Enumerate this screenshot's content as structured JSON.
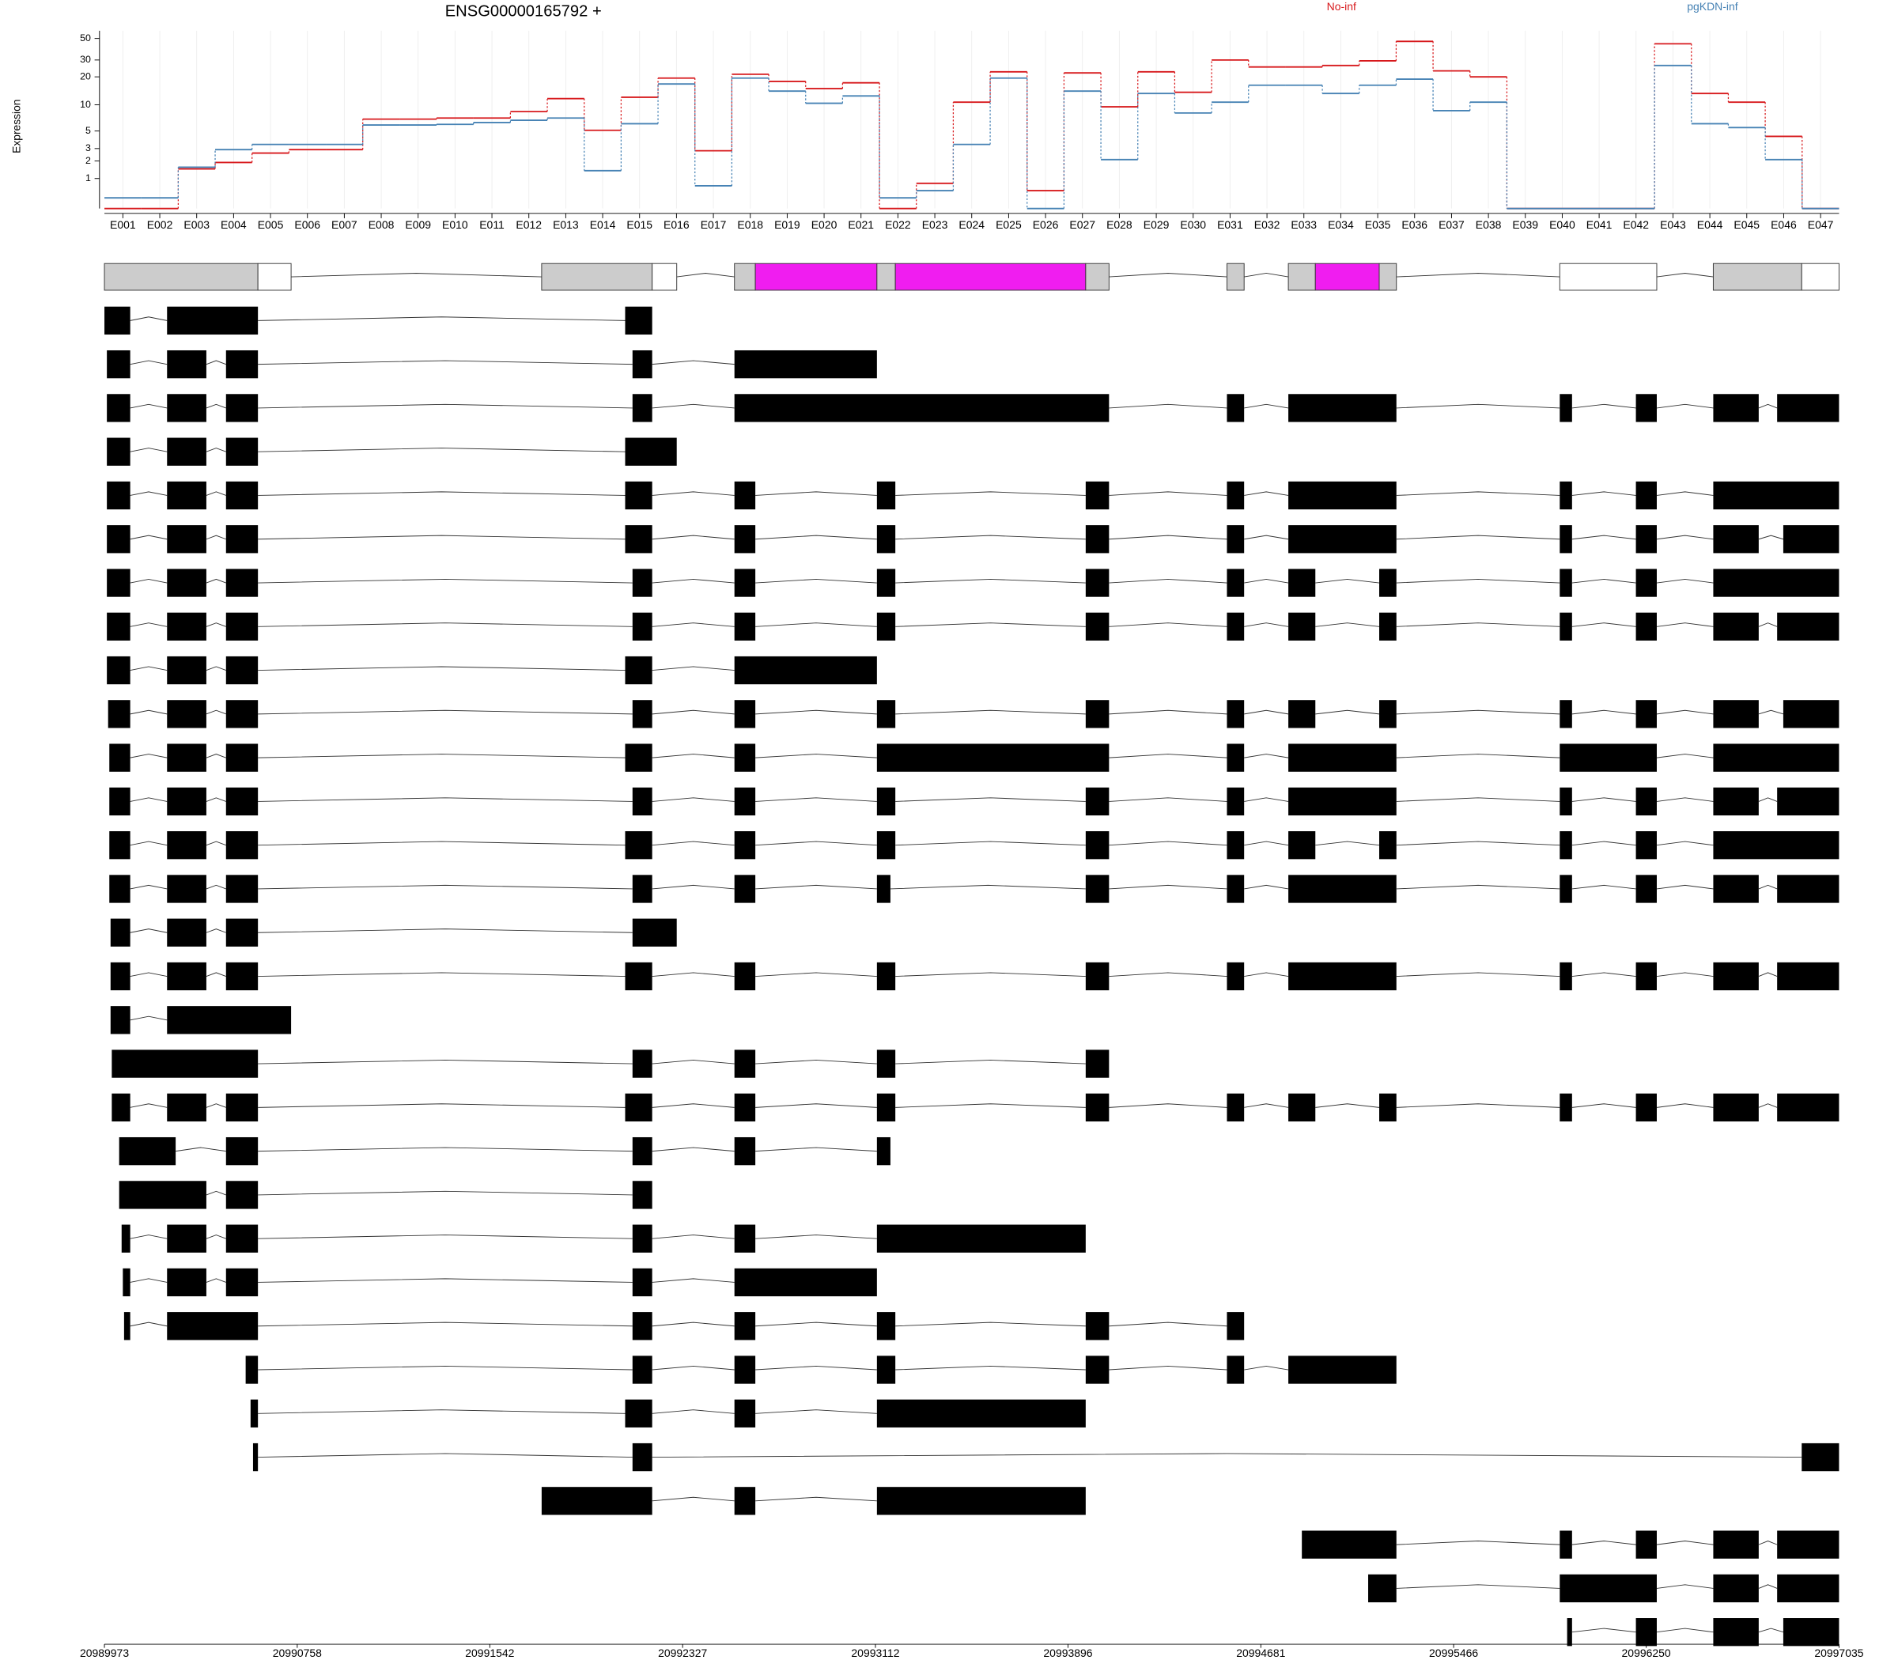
{
  "chart_data": {
    "type": "line",
    "title": "ENSG00000165792 +",
    "y_label": "Expression",
    "y_scale": "log1p",
    "grid": true,
    "legend_position": "top",
    "categories": [
      "E001",
      "E002",
      "E003",
      "E004",
      "E005",
      "E006",
      "E007",
      "E008",
      "E009",
      "E010",
      "E011",
      "E012",
      "E013",
      "E014",
      "E015",
      "E016",
      "E017",
      "E018",
      "E019",
      "E020",
      "E021",
      "E022",
      "E023",
      "E024",
      "E025",
      "E026",
      "E027",
      "E028",
      "E029",
      "E030",
      "E031",
      "E032",
      "E033",
      "E034",
      "E035",
      "E036",
      "E037",
      "E038",
      "E039",
      "E040",
      "E041",
      "E042",
      "E043",
      "E044",
      "E045",
      "E046",
      "E047"
    ],
    "series": [
      {
        "name": "No-inf",
        "color": "#d7191c",
        "values": [
          0,
          0,
          1.5,
          1.9,
          2.6,
          2.9,
          2.9,
          6.9,
          6.9,
          7.1,
          7.1,
          8.4,
          11.7,
          5.1,
          12.1,
          19.4,
          2.8,
          21.3,
          17.9,
          15,
          17.3,
          0,
          0.79,
          10.7,
          22.6,
          0.51,
          22,
          9.5,
          22.6,
          13.7,
          30,
          25.4,
          25.4,
          26.3,
          29.4,
          46.7,
          23.1,
          20,
          0,
          0,
          0,
          0,
          44.1,
          13.3,
          10.7,
          4.3,
          0
        ]
      },
      {
        "name": "pgKDN-inf",
        "color": "#4682b4",
        "values": [
          0.28,
          0.28,
          1.6,
          2.9,
          3.4,
          3.4,
          3.4,
          5.9,
          5.9,
          6.0,
          6.3,
          6.7,
          7.1,
          1.4,
          6.1,
          16.8,
          0.69,
          19.4,
          14.1,
          10.4,
          12.5,
          0.28,
          0.51,
          3.4,
          19.4,
          0,
          14.1,
          2.1,
          13.3,
          8.1,
          10.7,
          16.3,
          16.3,
          13.3,
          16.3,
          18.9,
          8.6,
          10.7,
          0,
          0,
          0,
          0,
          26.3,
          6.1,
          5.5,
          2.1,
          0
        ]
      }
    ],
    "ylim": [
      0,
      60
    ],
    "yticks": [
      1,
      2,
      3,
      5,
      10,
      20,
      30,
      50
    ],
    "xlim": [
      20989973,
      20997035
    ],
    "xticks": [
      20989973,
      20990758,
      20991542,
      20992327,
      20993112,
      20993896,
      20994681,
      20995466,
      20996250,
      20997035
    ],
    "gene_model": [
      {
        "start": 20989973,
        "end": 20990598,
        "color": "#cccccc"
      },
      {
        "start": 20990598,
        "end": 20990733,
        "color": "#ffffff"
      },
      {
        "start": 20991753,
        "end": 20992203,
        "color": "#cccccc"
      },
      {
        "start": 20992203,
        "end": 20992303,
        "color": "#ffffff"
      },
      {
        "start": 20992538,
        "end": 20992623,
        "color": "#cccccc"
      },
      {
        "start": 20992623,
        "end": 20993118,
        "color": "#f01df0"
      },
      {
        "start": 20993118,
        "end": 20993193,
        "color": "#cccccc"
      },
      {
        "start": 20993193,
        "end": 20993968,
        "color": "#f01df0"
      },
      {
        "start": 20993968,
        "end": 20994063,
        "color": "#cccccc"
      },
      {
        "start": 20994543,
        "end": 20994613,
        "color": "#cccccc"
      },
      {
        "start": 20994793,
        "end": 20994903,
        "color": "#cccccc"
      },
      {
        "start": 20994903,
        "end": 20995163,
        "color": "#f01df0"
      },
      {
        "start": 20995163,
        "end": 20995233,
        "color": "#cccccc"
      },
      {
        "start": 20995898,
        "end": 20996293,
        "color": "#ffffff"
      },
      {
        "start": 20996523,
        "end": 20996883,
        "color": "#cccccc"
      },
      {
        "start": 20996883,
        "end": 20997035,
        "color": "#ffffff"
      }
    ],
    "transcripts": [
      [
        [
          20989973,
          20990078
        ],
        [
          20990228,
          20990598
        ],
        [
          20992093,
          20992203
        ]
      ],
      [
        [
          20989983,
          20990078
        ],
        [
          20990228,
          20990388
        ],
        [
          20990468,
          20990598
        ],
        [
          20992123,
          20992203
        ],
        [
          20992538,
          20993118
        ]
      ],
      [
        [
          20989983,
          20990078
        ],
        [
          20990228,
          20990388
        ],
        [
          20990468,
          20990598
        ],
        [
          20992123,
          20992203
        ],
        [
          20992538,
          20994063
        ],
        [
          20994543,
          20994613
        ],
        [
          20994793,
          20995233
        ],
        [
          20995898,
          20995948
        ],
        [
          20996208,
          20996293
        ],
        [
          20996523,
          20996708
        ],
        [
          20996783,
          20997035
        ]
      ],
      [
        [
          20989983,
          20990078
        ],
        [
          20990228,
          20990388
        ],
        [
          20990468,
          20990598
        ],
        [
          20992093,
          20992303
        ]
      ],
      [
        [
          20989983,
          20990078
        ],
        [
          20990228,
          20990388
        ],
        [
          20990468,
          20990598
        ],
        [
          20992093,
          20992203
        ],
        [
          20992538,
          20992623
        ],
        [
          20993118,
          20993193
        ],
        [
          20993968,
          20994063
        ],
        [
          20994543,
          20994613
        ],
        [
          20994793,
          20995233
        ],
        [
          20995898,
          20995948
        ],
        [
          20996208,
          20996293
        ],
        [
          20996523,
          20997035
        ]
      ],
      [
        [
          20989983,
          20990078
        ],
        [
          20990228,
          20990388
        ],
        [
          20990468,
          20990598
        ],
        [
          20992093,
          20992203
        ],
        [
          20992538,
          20992623
        ],
        [
          20993118,
          20993193
        ],
        [
          20993968,
          20994063
        ],
        [
          20994543,
          20994613
        ],
        [
          20994793,
          20995233
        ],
        [
          20995898,
          20995948
        ],
        [
          20996208,
          20996293
        ],
        [
          20996523,
          20996708
        ],
        [
          20996808,
          20997035
        ]
      ],
      [
        [
          20989983,
          20990078
        ],
        [
          20990228,
          20990388
        ],
        [
          20990468,
          20990598
        ],
        [
          20992123,
          20992203
        ],
        [
          20992538,
          20992623
        ],
        [
          20993118,
          20993193
        ],
        [
          20993968,
          20994063
        ],
        [
          20994543,
          20994613
        ],
        [
          20994793,
          20994903
        ],
        [
          20995163,
          20995233
        ],
        [
          20995898,
          20995948
        ],
        [
          20996208,
          20996293
        ],
        [
          20996523,
          20997035
        ]
      ],
      [
        [
          20989983,
          20990078
        ],
        [
          20990228,
          20990388
        ],
        [
          20990468,
          20990598
        ],
        [
          20992123,
          20992203
        ],
        [
          20992538,
          20992623
        ],
        [
          20993118,
          20993193
        ],
        [
          20993968,
          20994063
        ],
        [
          20994543,
          20994613
        ],
        [
          20994793,
          20994903
        ],
        [
          20995163,
          20995233
        ],
        [
          20995898,
          20995948
        ],
        [
          20996208,
          20996293
        ],
        [
          20996523,
          20996708
        ],
        [
          20996783,
          20997035
        ]
      ],
      [
        [
          20989983,
          20990078
        ],
        [
          20990228,
          20990388
        ],
        [
          20990468,
          20990598
        ],
        [
          20992093,
          20992203
        ],
        [
          20992538,
          20993118
        ]
      ],
      [
        [
          20989988,
          20990078
        ],
        [
          20990228,
          20990388
        ],
        [
          20990468,
          20990598
        ],
        [
          20992123,
          20992203
        ],
        [
          20992538,
          20992623
        ],
        [
          20993118,
          20993193
        ],
        [
          20993968,
          20994063
        ],
        [
          20994543,
          20994613
        ],
        [
          20994793,
          20994903
        ],
        [
          20995163,
          20995233
        ],
        [
          20995898,
          20995948
        ],
        [
          20996208,
          20996293
        ],
        [
          20996523,
          20996708
        ],
        [
          20996808,
          20997035
        ]
      ],
      [
        [
          20989993,
          20990078
        ],
        [
          20990228,
          20990388
        ],
        [
          20990468,
          20990598
        ],
        [
          20992093,
          20992203
        ],
        [
          20992538,
          20992623
        ],
        [
          20993118,
          20994063
        ],
        [
          20994543,
          20994613
        ],
        [
          20994793,
          20995233
        ],
        [
          20995898,
          20996293
        ],
        [
          20996523,
          20997035
        ]
      ],
      [
        [
          20989993,
          20990078
        ],
        [
          20990228,
          20990388
        ],
        [
          20990468,
          20990598
        ],
        [
          20992123,
          20992203
        ],
        [
          20992538,
          20992623
        ],
        [
          20993118,
          20993193
        ],
        [
          20993968,
          20994063
        ],
        [
          20994543,
          20994613
        ],
        [
          20994793,
          20995233
        ],
        [
          20995898,
          20995948
        ],
        [
          20996208,
          20996293
        ],
        [
          20996523,
          20996708
        ],
        [
          20996783,
          20997035
        ]
      ],
      [
        [
          20989993,
          20990078
        ],
        [
          20990228,
          20990388
        ],
        [
          20990468,
          20990598
        ],
        [
          20992093,
          20992203
        ],
        [
          20992538,
          20992623
        ],
        [
          20993118,
          20993193
        ],
        [
          20993968,
          20994063
        ],
        [
          20994543,
          20994613
        ],
        [
          20994793,
          20994903
        ],
        [
          20995163,
          20995233
        ],
        [
          20995898,
          20995948
        ],
        [
          20996208,
          20996293
        ],
        [
          20996523,
          20997035
        ]
      ],
      [
        [
          20989993,
          20990078
        ],
        [
          20990228,
          20990388
        ],
        [
          20990468,
          20990598
        ],
        [
          20992123,
          20992203
        ],
        [
          20992538,
          20992623
        ],
        [
          20993118,
          20993173
        ],
        [
          20993968,
          20994063
        ],
        [
          20994543,
          20994613
        ],
        [
          20994793,
          20995233
        ],
        [
          20995898,
          20995948
        ],
        [
          20996208,
          20996293
        ],
        [
          20996523,
          20996708
        ],
        [
          20996783,
          20997035
        ]
      ],
      [
        [
          20989998,
          20990078
        ],
        [
          20990228,
          20990388
        ],
        [
          20990468,
          20990598
        ],
        [
          20992123,
          20992303
        ]
      ],
      [
        [
          20989998,
          20990078
        ],
        [
          20990228,
          20990388
        ],
        [
          20990468,
          20990598
        ],
        [
          20992093,
          20992203
        ],
        [
          20992538,
          20992623
        ],
        [
          20993118,
          20993193
        ],
        [
          20993968,
          20994063
        ],
        [
          20994543,
          20994613
        ],
        [
          20994793,
          20995233
        ],
        [
          20995898,
          20995948
        ],
        [
          20996208,
          20996293
        ],
        [
          20996523,
          20996708
        ],
        [
          20996783,
          20997035
        ]
      ],
      [
        [
          20989998,
          20990078
        ],
        [
          20990228,
          20990733
        ]
      ],
      [
        [
          20990003,
          20990598
        ],
        [
          20992123,
          20992203
        ],
        [
          20992538,
          20992623
        ],
        [
          20993118,
          20993193
        ],
        [
          20993968,
          20994063
        ]
      ],
      [
        [
          20990003,
          20990078
        ],
        [
          20990228,
          20990388
        ],
        [
          20990468,
          20990598
        ],
        [
          20992093,
          20992203
        ],
        [
          20992538,
          20992623
        ],
        [
          20993118,
          20993193
        ],
        [
          20993968,
          20994063
        ],
        [
          20994543,
          20994613
        ],
        [
          20994793,
          20994903
        ],
        [
          20995163,
          20995233
        ],
        [
          20995898,
          20995948
        ],
        [
          20996208,
          20996293
        ],
        [
          20996523,
          20996708
        ],
        [
          20996783,
          20997035
        ]
      ],
      [
        [
          20990033,
          20990263
        ],
        [
          20990468,
          20990598
        ],
        [
          20992123,
          20992203
        ],
        [
          20992538,
          20992623
        ],
        [
          20993118,
          20993173
        ]
      ],
      [
        [
          20990033,
          20990388
        ],
        [
          20990468,
          20990598
        ],
        [
          20992123,
          20992203
        ]
      ],
      [
        [
          20990043,
          20990078
        ],
        [
          20990228,
          20990388
        ],
        [
          20990468,
          20990598
        ],
        [
          20992123,
          20992203
        ],
        [
          20992538,
          20992623
        ],
        [
          20993118,
          20993968
        ]
      ],
      [
        [
          20990048,
          20990078
        ],
        [
          20990228,
          20990388
        ],
        [
          20990468,
          20990598
        ],
        [
          20992123,
          20992203
        ],
        [
          20992538,
          20993118
        ]
      ],
      [
        [
          20990053,
          20990078
        ],
        [
          20990228,
          20990598
        ],
        [
          20992123,
          20992203
        ],
        [
          20992538,
          20992623
        ],
        [
          20993118,
          20993193
        ],
        [
          20993968,
          20994063
        ],
        [
          20994543,
          20994613
        ]
      ],
      [
        [
          20990548,
          20990598
        ],
        [
          20992123,
          20992203
        ],
        [
          20992538,
          20992623
        ],
        [
          20993118,
          20993193
        ],
        [
          20993968,
          20994063
        ],
        [
          20994543,
          20994613
        ],
        [
          20994793,
          20995233
        ]
      ],
      [
        [
          20990568,
          20990598
        ],
        [
          20992093,
          20992203
        ],
        [
          20992538,
          20992623
        ],
        [
          20993118,
          20993968
        ]
      ],
      [
        [
          20990578,
          20990598
        ],
        [
          20992123,
          20992203
        ],
        [
          20996883,
          20997035
        ]
      ],
      [
        [
          20991753,
          20992203
        ],
        [
          20992538,
          20992623
        ],
        [
          20993118,
          20993968
        ]
      ],
      [
        [
          20994848,
          20995233
        ],
        [
          20995898,
          20995948
        ],
        [
          20996208,
          20996293
        ],
        [
          20996523,
          20996708
        ],
        [
          20996783,
          20997035
        ]
      ],
      [
        [
          20995118,
          20995233
        ],
        [
          20995898,
          20996293
        ],
        [
          20996523,
          20996708
        ],
        [
          20996783,
          20997035
        ]
      ],
      [
        [
          20995928,
          20995948
        ],
        [
          20996208,
          20996293
        ],
        [
          20996523,
          20996708
        ],
        [
          20996808,
          20997035
        ]
      ]
    ]
  }
}
